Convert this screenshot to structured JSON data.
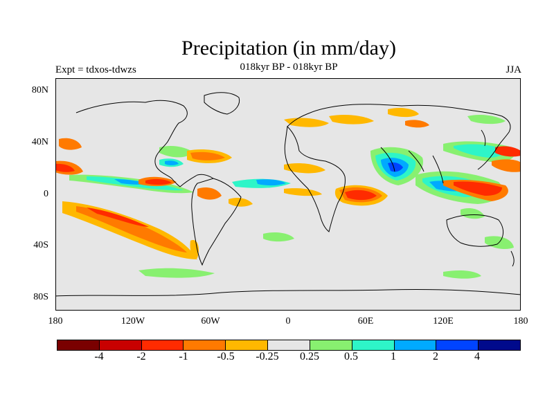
{
  "title": "Precipitation (in mm/day)",
  "subtitle": "018kyr BP - 018kyr BP",
  "left_label": "Expt = tdxos-tdwzs",
  "right_label": "JJA",
  "axes": {
    "y_ticks": [
      "80N",
      "40N",
      "0",
      "40S",
      "80S"
    ],
    "x_ticks": [
      "180",
      "120W",
      "60W",
      "0",
      "60E",
      "120E",
      "180"
    ]
  },
  "colorbar": {
    "colors": [
      "#7a0000",
      "#c80000",
      "#ff2b00",
      "#ff7a00",
      "#ffb800",
      "#e6e6e6",
      "#88f070",
      "#2ef5c8",
      "#00aaff",
      "#0044ff",
      "#000a8c"
    ],
    "labels": [
      "-4",
      "-2",
      "-1",
      "-0.5",
      "-0.25",
      "0.25",
      "0.5",
      "1",
      "2",
      "4"
    ]
  },
  "colors": {
    "background": "#e6e6e6",
    "coastline": "#000000"
  }
}
